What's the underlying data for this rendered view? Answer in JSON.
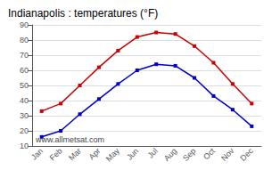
{
  "chart_data": {
    "type": "line",
    "title": "Indianapolis : temperatures (°F)",
    "categories": [
      "Jan",
      "Feb",
      "Mar",
      "Apr",
      "May",
      "Jun",
      "Jul",
      "Aug",
      "Sep",
      "Oct",
      "Nov",
      "Dec"
    ],
    "series": [
      {
        "color": "#cc0000",
        "marker": "square",
        "values": [
          33,
          38,
          50,
          62,
          73,
          82,
          85,
          84,
          76,
          65,
          51,
          38
        ]
      },
      {
        "color": "#0000cc",
        "marker": "square",
        "values": [
          16,
          20,
          31,
          41,
          51,
          60,
          64,
          63,
          55,
          43,
          34,
          23
        ]
      }
    ],
    "ylim": [
      10,
      90
    ],
    "yticks": [
      10,
      20,
      30,
      40,
      50,
      60,
      70,
      80,
      90
    ],
    "grid": true,
    "annotations": [
      "www.allmetsat.com"
    ]
  }
}
